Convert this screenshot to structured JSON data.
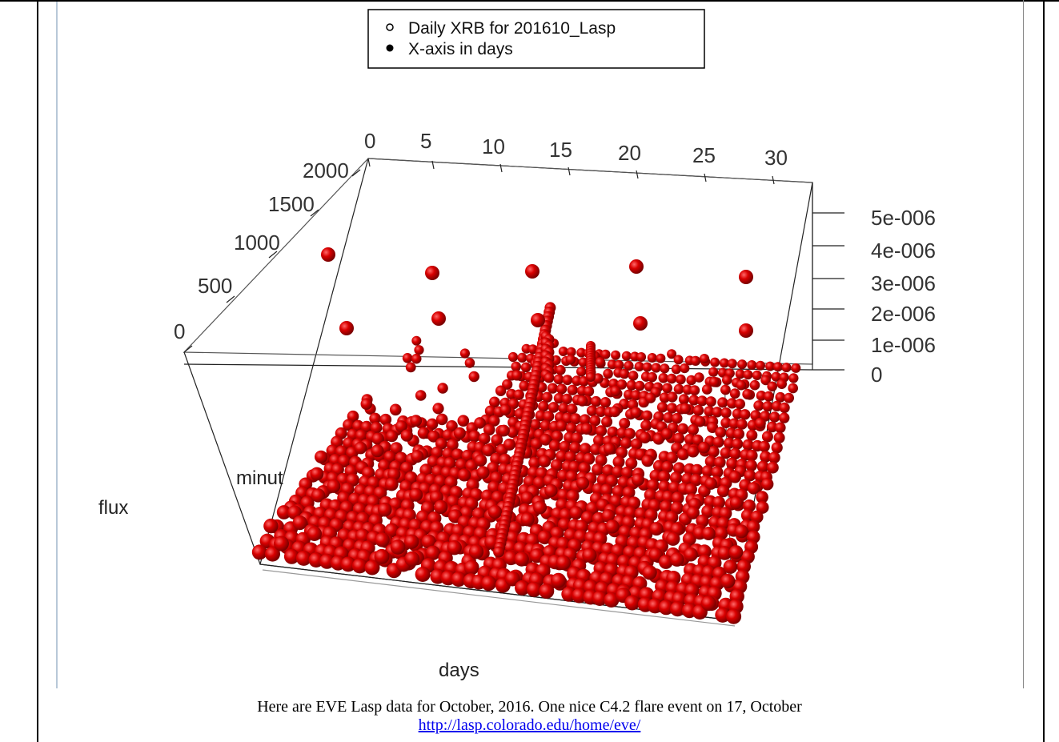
{
  "chart_data": {
    "type": "scatter",
    "subtype": "3d-scatter",
    "legend": {
      "placement": "top-center",
      "entries": [
        {
          "label": "Daily XRB for 201610_Lasp",
          "marker": "open-circle"
        },
        {
          "label": "X-axis in days",
          "marker": "filled-circle"
        }
      ]
    },
    "x_axis": {
      "label": "days",
      "ticks": [
        "0",
        "5",
        "10",
        "15",
        "20",
        "25",
        "30"
      ],
      "range": [
        0,
        31
      ]
    },
    "y_axis": {
      "label": "minut",
      "ticks": [
        "0",
        "500",
        "1000",
        "1500",
        "2000"
      ],
      "range": [
        0,
        2000
      ]
    },
    "z_axis": {
      "label": "flux",
      "ticks": [
        "0",
        "1e-006",
        "2e-006",
        "3e-006",
        "4e-006",
        "5e-006"
      ],
      "range": [
        0,
        5.5e-06
      ]
    },
    "marker_color": "#cc0000",
    "flare_event": {
      "day": 17,
      "peak_flux": 4.2e-06
    },
    "note": "Most points lie near flux 0 across all days and minutes; a tall spike occurs around days 16–18."
  },
  "caption": {
    "text": "Here are EVE Lasp data for October, 2016.  One nice C4.2 flare event on 17, October",
    "link": "http://lasp.colorado.edu/home/eve/"
  }
}
